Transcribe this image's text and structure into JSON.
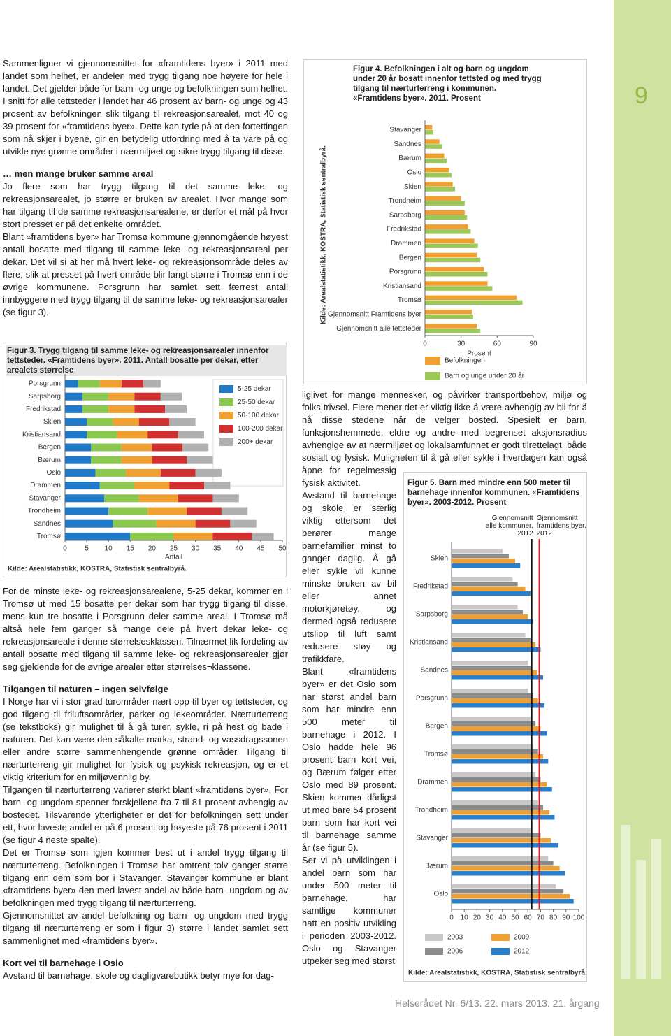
{
  "page": {
    "number": "9",
    "footer": "Helserådet Nr. 6/13. 22. mars 2013. 21. årgang"
  },
  "left_top": {
    "paragraphs": [
      "Sammenligner vi gjennomsnittet for «framtidens byer» i 2011 med landet som helhet, er andelen med trygg tilgang noe høyere for hele i landet. Det gjelder både for barn- og unge og befolkningen som helhet. I snitt for alle tettsteder i landet har 46 prosent av barn- og unge og 43 prosent av befolkningen slik tilgang til rekreasjonsarealet, mot 40 og 39 prosent for «framtidens byer». Dette kan tyde på at den fortettingen som nå skjer i byene, gir en betydelig utfordring med å ta vare på og utvikle nye grønne områder i nærmiljøet og sikre trygg tilgang til disse."
    ],
    "heading": "… men mange bruker samme areal",
    "section": [
      "Jo flere som har trygg tilgang til det samme leke- og rekreasjonsarealet, jo større er bruken av arealet. Hvor mange som har tilgang til de samme rekreasjonsarealene, er derfor et mål på hvor stort presset er på det enkelte området.",
      "Blant «framtidens byer» har Tromsø kommune gjennomgående høyest antall bosatte med tilgang til samme leke- og rekreasjonsareal per dekar. Det vil si at her må hvert leke- og rekreasjonsområde deles av flere, slik at presset på hvert område blir langt større i Tromsø enn i de øvrige kommunene. Porsgrunn har samlet sett færrest antall innbyggere med trygg tilgang til de samme leke- og rekreasjonsarealer (se figur 3)."
    ]
  },
  "left_bottom": {
    "paragraphs": [
      "For de minste leke- og rekreasjonsarealene, 5-25 dekar, kommer en i Tromsø ut med 15 bosatte per dekar som har trygg tilgang til disse, mens kun tre bosatte i Porsgrunn deler samme areal. I Tromsø må altså hele fem ganger så mange dele på hvert dekar leke- og rekreasjonsareale i denne størrelsesklassen. Tilnærmet lik fordeling av antall bosatte med tilgang til samme leke- og rekreasjonsarealer gjør seg gjeldende for de øvrige arealer etter størrelses¬klassene."
    ],
    "heading_1": "Tilgangen til naturen – ingen selvfølge",
    "section_1": [
      "I Norge har vi i stor grad turområder nært opp til byer og tettsteder, og god tilgang til friluftsområder, parker og lekeområder. Nærturterreng (se tekstboks) gir mulighet til å gå turer, sykle, ri på hest og bade i naturen. Det kan være den såkalte marka, strand- og vassdragssonen eller andre større sammenhengende grønne områder. Tilgang til nærturterreng gir mulighet for fysisk og psykisk rekreasjon, og er et viktig kriterium for en miljøvennlig by.",
      "Tilgangen til nærturterreng varierer sterkt blant «framtidens byer». For barn- og ungdom spenner forskjellene fra 7 til 81 prosent avhengig av bostedet. Tilsvarende ytterligheter er det for befolkningen sett under ett, hvor laveste andel er på 6 prosent og høyeste på 76 prosent i 2011 (se figur 4 neste spalte).",
      "Det er Tromsø som igjen kommer best ut i andel trygg tilgang til nærturterreng. Befolkningen i Tromsø har omtrent tolv ganger større tilgang enn dem som bor i Stavanger. Stavanger kommune er blant «framtidens byer» den med lavest andel av både barn- ungdom og av befolkningen med trygg tilgang til nærturterreng.",
      "Gjennomsnittet av andel befolkning og barn- og ungdom med trygg tilgang til nærturterreng er som i figur 3) større i landet samlet sett sammenlignet med «framtidens byer»."
    ],
    "heading_2": "Kort vei til barnehage i Oslo",
    "section_2": [
      "Avstand til barnehage, skole og dagligvarebutikk betyr mye for dag-"
    ]
  },
  "right_column": {
    "paragraphs": [
      "liglivet for mange mennesker, og påvirker transportbehov, miljø og folks trivsel. Flere mener det er viktig ikke å være avhengig av bil for å nå disse stedene når de velger bosted. Spesielt er barn, funksjonshemmede, eldre og andre med begrenset aksjonsradius avhengige av at nærmiljøet og lokalsamfunnet er godt tilrettelagt, både sosialt og fysisk. Muligheten til å gå eller sykle i hverdagen kan også åpne for regelmessig fysisk aktivitet.",
      "Avstand til barnehage og skole er særlig viktig ettersom det berører mange barnefamilier minst to ganger daglig. Å gå eller sykle vil kunne minske bruken av bil eller annet motorkjøretøy, og dermed også redusere utslipp til luft samt redusere støy og trafikkfare.",
      "Blant «framtidens byer» er det Oslo som har størst andel barn som har mindre enn 500 meter til barnehage i 2012. I Oslo hadde hele 96 prosent barn kort vei, og Bærum følger etter Oslo med 89 prosent. Skien kommer dårligst ut med bare 54 prosent barn som har kort vei til barnehage samme år (se figur 5).",
      "Ser vi på utviklingen i andel barn som har under 500 meter til barnehage, har samtlige kommuner hatt en positiv utvikling i perioden 2003-2012. Oslo og Stavanger utpeker seg med størst"
    ]
  },
  "chart_data": [
    {
      "type": "stacked_bar",
      "title": "Figur 3. Trygg tilgang til samme leke- og rekreasjonsarealer innenfor tettsteder. «Framtidens byer». 2011. Antall bosatte per dekar, etter arealets størrelse",
      "source": "Kilde: Arealstatistikk, KOSTRA, Statistisk sentralbyrå.",
      "xlabel": "Antall",
      "categories": [
        "Porsgrunn",
        "Sarpsborg",
        "Fredrikstad",
        "Skien",
        "Kristiansand",
        "Bergen",
        "Bærum",
        "Oslo",
        "Drammen",
        "Stavanger",
        "Trondheim",
        "Sandnes",
        "Tromsø"
      ],
      "series": [
        {
          "name": "5-25 dekar",
          "color": "#1f78c8",
          "values": [
            3,
            4,
            4,
            5,
            5,
            6,
            6,
            7,
            8,
            9,
            10,
            11,
            15
          ]
        },
        {
          "name": "25-50 dekar",
          "color": "#8cc850",
          "values": [
            5,
            6,
            6,
            6,
            7,
            7,
            7,
            7,
            8,
            8,
            9,
            10,
            10
          ]
        },
        {
          "name": "50-100 dekar",
          "color": "#f0a030",
          "values": [
            5,
            6,
            6,
            6,
            7,
            7,
            7,
            8,
            8,
            9,
            9,
            9,
            9
          ]
        },
        {
          "name": "100-200 dekar",
          "color": "#d03030",
          "values": [
            5,
            6,
            7,
            7,
            7,
            7,
            8,
            8,
            8,
            8,
            8,
            8,
            9
          ]
        },
        {
          "name": "200+ dekar",
          "color": "#b0b0b0",
          "values": [
            4,
            5,
            5,
            6,
            6,
            6,
            6,
            6,
            6,
            6,
            6,
            6,
            5
          ]
        }
      ],
      "xlim": [
        0,
        50
      ],
      "xticks": [
        0,
        5,
        10,
        15,
        20,
        25,
        30,
        35,
        40,
        45,
        50
      ]
    },
    {
      "type": "bar",
      "title": "Figur 4. Befolkningen i alt og barn og ungdom under 20 år bosatt innenfor tettsted og med trygg tilgang til nærturterreng i kommunen. «Framtidens byer». 2011. Prosent",
      "source": "Kilde: Arealstatistikk, KOSTRA, Statistisk sentralbyrå.",
      "xlabel": "Prosent",
      "categories": [
        "Stavanger",
        "Sandnes",
        "Bærum",
        "Oslo",
        "Skien",
        "Trondheim",
        "Sarpsborg",
        "Fredrikstad",
        "Drammen",
        "Bergen",
        "Porsgrunn",
        "Kristiansand",
        "Tromsø",
        "Gjennomsnitt Framtidens byer",
        "Gjennomsnitt alle tettsteder"
      ],
      "series": [
        {
          "name": "Befolkningen",
          "color": "#f0a030",
          "values": [
            6,
            12,
            16,
            20,
            23,
            30,
            33,
            36,
            41,
            43,
            49,
            52,
            76,
            39,
            43
          ]
        },
        {
          "name": "Barn og unge under 20 år",
          "color": "#9cc85a",
          "values": [
            7,
            14,
            18,
            22,
            25,
            33,
            35,
            38,
            44,
            46,
            52,
            56,
            81,
            40,
            46
          ]
        }
      ],
      "xlim": [
        0,
        90
      ],
      "xticks": [
        0,
        30,
        60,
        90
      ]
    },
    {
      "type": "bar",
      "title": "Figur 5. Barn med mindre enn 500 meter til barnehage innenfor kommunen. «Framtidens byer». 2003-2012. Prosent",
      "source": "Kilde: Arealstatistikk, KOSTRA, Statistisk sentralbyrå.",
      "categories": [
        "Skien",
        "Fredrikstad",
        "Sarpsborg",
        "Kristiansand",
        "Sandnes",
        "Porsgrunn",
        "Bergen",
        "Tromsø",
        "Drammen",
        "Trondheim",
        "Stavanger",
        "Bærum",
        "Oslo"
      ],
      "series": [
        {
          "name": "2003",
          "color": "#c8c8c8",
          "values": [
            40,
            48,
            52,
            58,
            60,
            60,
            62,
            64,
            66,
            68,
            62,
            76,
            82
          ]
        },
        {
          "name": "2006",
          "color": "#8c8c8c",
          "values": [
            45,
            52,
            56,
            62,
            63,
            64,
            66,
            68,
            70,
            72,
            70,
            80,
            88
          ]
        },
        {
          "name": "2009",
          "color": "#f0a030",
          "values": [
            50,
            58,
            60,
            66,
            67,
            68,
            70,
            72,
            75,
            77,
            78,
            85,
            93
          ]
        },
        {
          "name": "2012",
          "color": "#2a7fc8",
          "values": [
            54,
            62,
            64,
            70,
            72,
            73,
            75,
            76,
            79,
            81,
            84,
            89,
            96
          ]
        }
      ],
      "reference_lines": [
        {
          "label": "Gjennomsnitt alle kommuner, 2012",
          "value": 63,
          "color": "#111111"
        },
        {
          "label": "Gjennomsnitt framtidens byer, 2012",
          "value": 69,
          "color": "#d02020"
        }
      ],
      "xlim": [
        0,
        100
      ],
      "xticks": [
        0,
        10,
        20,
        30,
        40,
        50,
        60,
        70,
        80,
        90,
        100
      ]
    }
  ]
}
